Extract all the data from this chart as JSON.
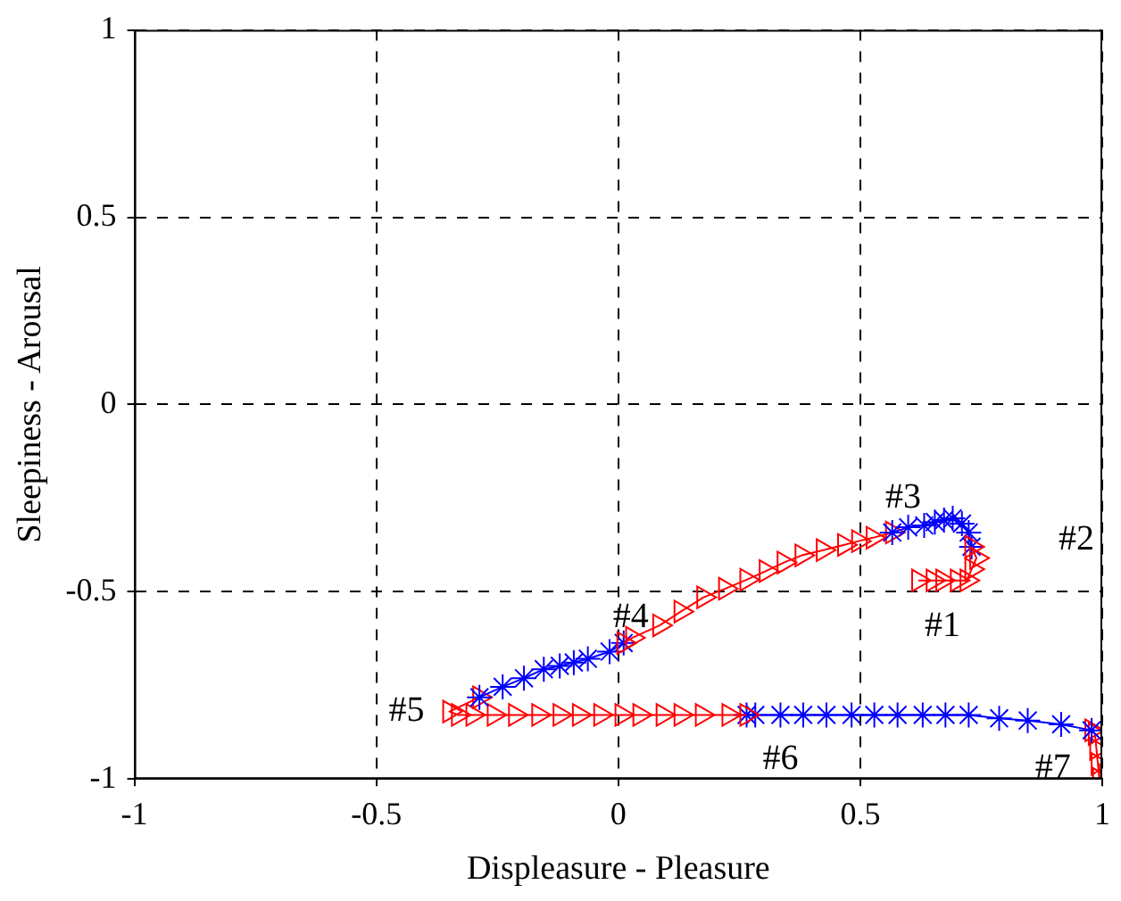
{
  "chart_data": {
    "type": "line",
    "xlabel": "Displeasure - Pleasure",
    "ylabel": "Sleepiness - Arousal",
    "xlim": [
      -1,
      1
    ],
    "xticks": [
      -1,
      -0.5,
      0,
      0.5,
      1
    ],
    "ylim": [
      -1,
      1
    ],
    "yticks": [
      -1,
      -0.5,
      0,
      0.5,
      1
    ],
    "grid": true,
    "legend": false,
    "series": [
      {
        "color": "#ff0000",
        "marker": "triangle",
        "x": [
          0.62,
          0.65,
          0.67,
          0.7,
          0.72,
          0.73,
          0.74,
          0.73
        ],
        "values": [
          -0.47,
          -0.47,
          -0.47,
          -0.47,
          -0.47,
          -0.44,
          -0.41,
          -0.38
        ]
      },
      {
        "color": "#0000ff",
        "marker": "cross",
        "x": [
          0.73,
          0.724,
          0.71,
          0.691,
          0.673,
          0.654,
          0.632,
          0.599,
          0.566
        ],
        "values": [
          -0.38,
          -0.342,
          -0.318,
          -0.304,
          -0.309,
          -0.314,
          -0.323,
          -0.328,
          -0.342
        ]
      },
      {
        "color": "#ff0000",
        "marker": "triangle",
        "x": [
          0.566,
          0.526,
          0.496,
          0.467,
          0.423,
          0.379,
          0.342,
          0.305,
          0.265,
          0.221,
          0.176,
          0.129,
          0.085,
          0.029,
          0.011
        ],
        "values": [
          -0.342,
          -0.356,
          -0.365,
          -0.375,
          -0.389,
          -0.403,
          -0.422,
          -0.445,
          -0.468,
          -0.492,
          -0.515,
          -0.553,
          -0.59,
          -0.623,
          -0.637
        ]
      },
      {
        "color": "#0000ff",
        "marker": "cross",
        "x": [
          0.011,
          -0.018,
          -0.063,
          -0.092,
          -0.121,
          -0.154,
          -0.195,
          -0.239,
          -0.287
        ],
        "values": [
          -0.637,
          -0.66,
          -0.679,
          -0.689,
          -0.698,
          -0.707,
          -0.731,
          -0.754,
          -0.782
        ]
      },
      {
        "color": "#ff0000",
        "marker": "triangle",
        "x": [
          -0.287,
          -0.349,
          -0.331,
          -0.301,
          -0.257,
          -0.213,
          -0.165,
          -0.121,
          -0.081,
          -0.037,
          0.007,
          0.044,
          0.092,
          0.129,
          0.173,
          0.228,
          0.265
        ],
        "values": [
          -0.782,
          -0.82,
          -0.829,
          -0.829,
          -0.829,
          -0.829,
          -0.829,
          -0.829,
          -0.829,
          -0.829,
          -0.829,
          -0.829,
          -0.829,
          -0.829,
          -0.829,
          -0.829,
          -0.829
        ]
      },
      {
        "color": "#0000ff",
        "marker": "cross",
        "x": [
          0.265,
          0.283,
          0.335,
          0.382,
          0.43,
          0.482,
          0.529,
          0.577,
          0.629,
          0.676,
          0.724,
          0.787,
          0.846,
          0.915,
          0.978
        ],
        "values": [
          -0.829,
          -0.829,
          -0.829,
          -0.829,
          -0.829,
          -0.829,
          -0.829,
          -0.829,
          -0.829,
          -0.829,
          -0.829,
          -0.838,
          -0.844,
          -0.854,
          -0.87
        ]
      },
      {
        "color": "#ff0000",
        "marker": "triangle",
        "x": [
          0.978,
          0.985,
          0.988,
          0.991,
          0.994
        ],
        "values": [
          -0.87,
          -0.88,
          -0.92,
          -0.96,
          -1.0
        ]
      }
    ],
    "annotations": [
      {
        "text": "#1",
        "x": 0.67,
        "y": -0.47
      },
      {
        "text": "#2",
        "x": 0.74,
        "y": -0.41
      },
      {
        "text": "#3",
        "x": 0.526,
        "y": -0.356
      },
      {
        "text": "#4",
        "x": 0.011,
        "y": -0.637
      },
      {
        "text": "#5",
        "x": -0.349,
        "y": -0.82
      },
      {
        "text": "#6",
        "x": 0.335,
        "y": -0.829
      },
      {
        "text": "#7",
        "x": 0.994,
        "y": -1.0
      }
    ]
  }
}
